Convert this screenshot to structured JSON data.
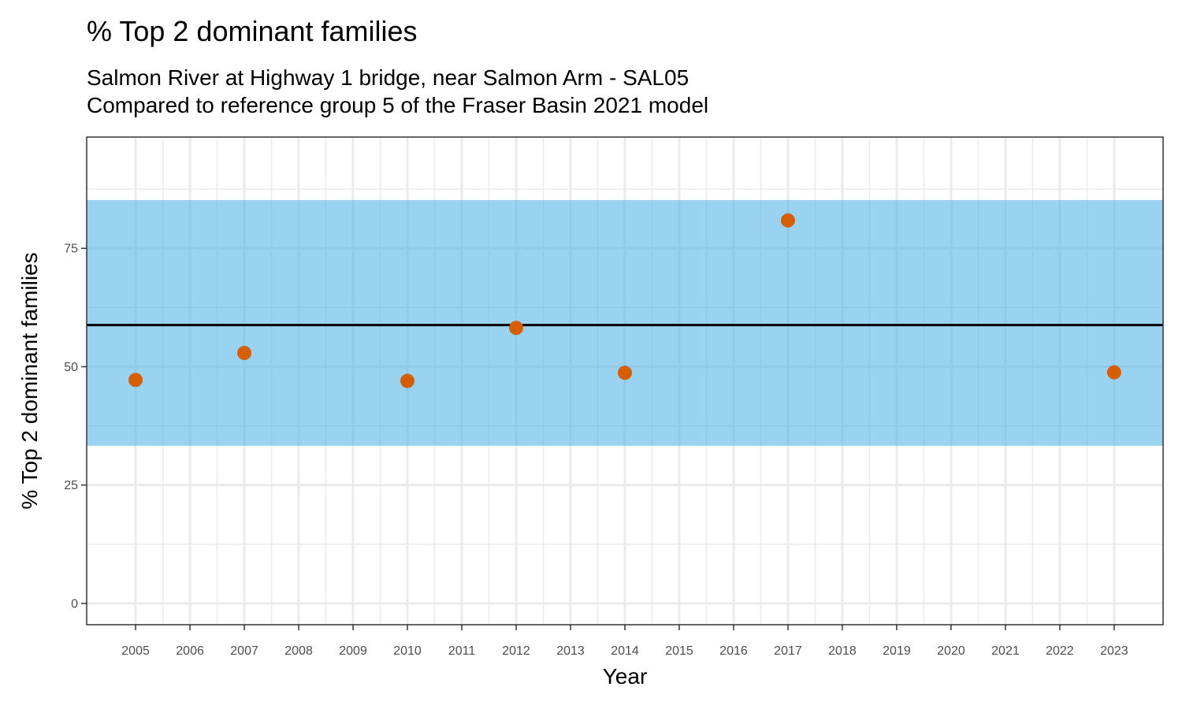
{
  "chart_data": {
    "type": "scatter",
    "title": "% Top 2 dominant families",
    "subtitle_lines": [
      "Salmon River at Highway 1 bridge, near Salmon Arm - SAL05",
      "Compared to reference group 5 of the Fraser Basin 2021 model"
    ],
    "xlabel": "Year",
    "ylabel": "% Top 2 dominant families",
    "x_ticks": [
      "2005",
      "2006",
      "2007",
      "2008",
      "2009",
      "2010",
      "2011",
      "2012",
      "2013",
      "2014",
      "2015",
      "2016",
      "2017",
      "2018",
      "2019",
      "2020",
      "2021",
      "2022",
      "2023"
    ],
    "y_ticks": [
      0,
      25,
      50,
      75
    ],
    "xlim": [
      2004.1,
      2023.9
    ],
    "ylim": [
      -4.5,
      98.5
    ],
    "reference_band": [
      33.3,
      85.2
    ],
    "reference_line": 58.8,
    "points": [
      {
        "x": 2005,
        "y": 47.2
      },
      {
        "x": 2007,
        "y": 52.9
      },
      {
        "x": 2010,
        "y": 47.0
      },
      {
        "x": 2012,
        "y": 58.2
      },
      {
        "x": 2014,
        "y": 48.7
      },
      {
        "x": 2017,
        "y": 80.9
      },
      {
        "x": 2023,
        "y": 48.8
      }
    ],
    "grid": true,
    "colors": {
      "point": "#d55e00",
      "band": "#56b4e9",
      "line": "#000000",
      "grid": "#ebebeb",
      "border": "#333333"
    }
  }
}
